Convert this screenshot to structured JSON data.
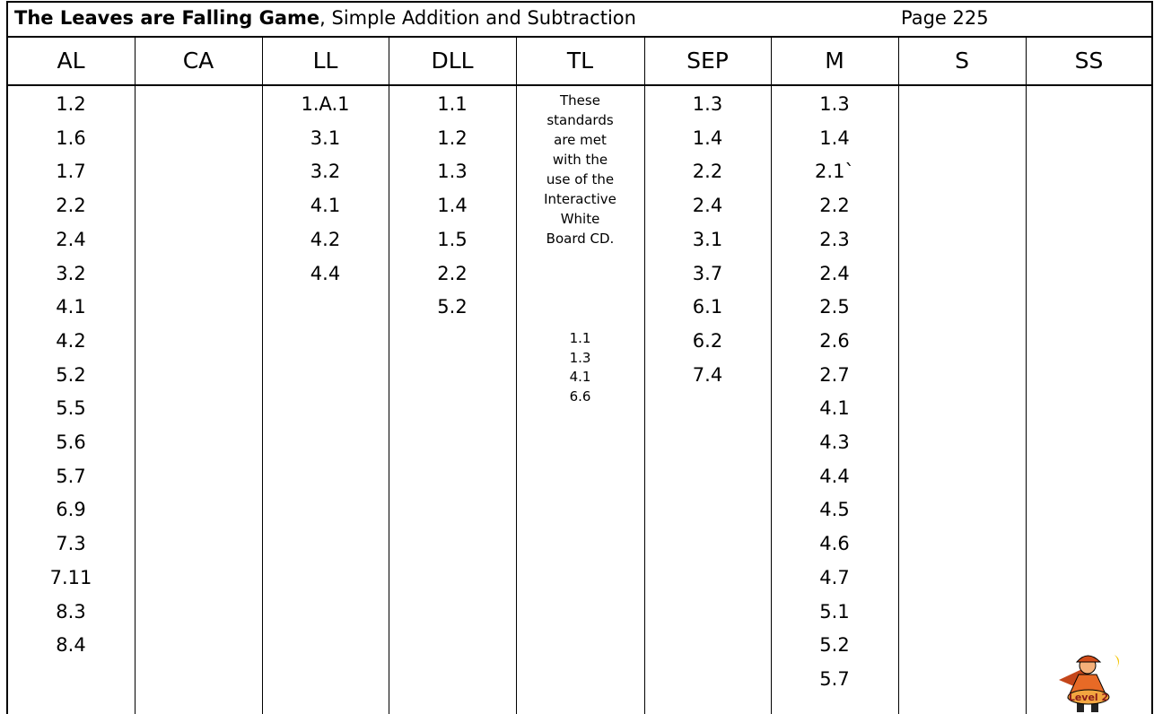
{
  "header": {
    "title_bold": "The Leaves are Falling Game",
    "title_rest": ", Simple Addition and Subtraction",
    "page": "Page 225"
  },
  "table": {
    "columns": [
      {
        "header": "AL",
        "entries": [
          "1.2",
          "1.6",
          "1.7",
          "2.2",
          "2.4",
          "3.2",
          "4.1",
          "4.2",
          "5.2",
          "5.5",
          "5.6",
          "5.7",
          "6.9",
          "7.3",
          "7.11",
          "8.3",
          "8.4"
        ]
      },
      {
        "header": "CA",
        "entries": []
      },
      {
        "header": "LL",
        "entries": [
          "1.A.1",
          "3.1",
          "3.2",
          "4.1",
          "4.2",
          "4.4"
        ]
      },
      {
        "header": "DLL",
        "entries": [
          "1.1",
          "1.2",
          "1.3",
          "1.4",
          "1.5",
          "2.2",
          "5.2"
        ]
      },
      {
        "header": "TL",
        "note": [
          "These",
          "standards",
          "are met",
          "with the",
          "use of the",
          "Interactive",
          "White",
          "Board CD."
        ],
        "entries": [
          "1.1",
          "1.3",
          "4.1",
          "6.6"
        ]
      },
      {
        "header": "SEP",
        "entries": [
          "1.3",
          "1.4",
          "2.2",
          "2.4",
          "3.1",
          "3.7",
          "6.1",
          "6.2",
          "7.4"
        ]
      },
      {
        "header": "M",
        "entries": [
          "1.3",
          "1.4",
          "2.1`",
          "2.2",
          "2.3",
          "2.4",
          "2.5",
          "2.6",
          "2.7",
          "4.1",
          "4.3",
          "4.4",
          "4.5",
          "4.6",
          "4.7",
          "5.1",
          "5.2",
          "5.7"
        ]
      },
      {
        "header": "S",
        "entries": []
      },
      {
        "header": "SS",
        "entries": []
      }
    ]
  },
  "badge": "Level 2"
}
